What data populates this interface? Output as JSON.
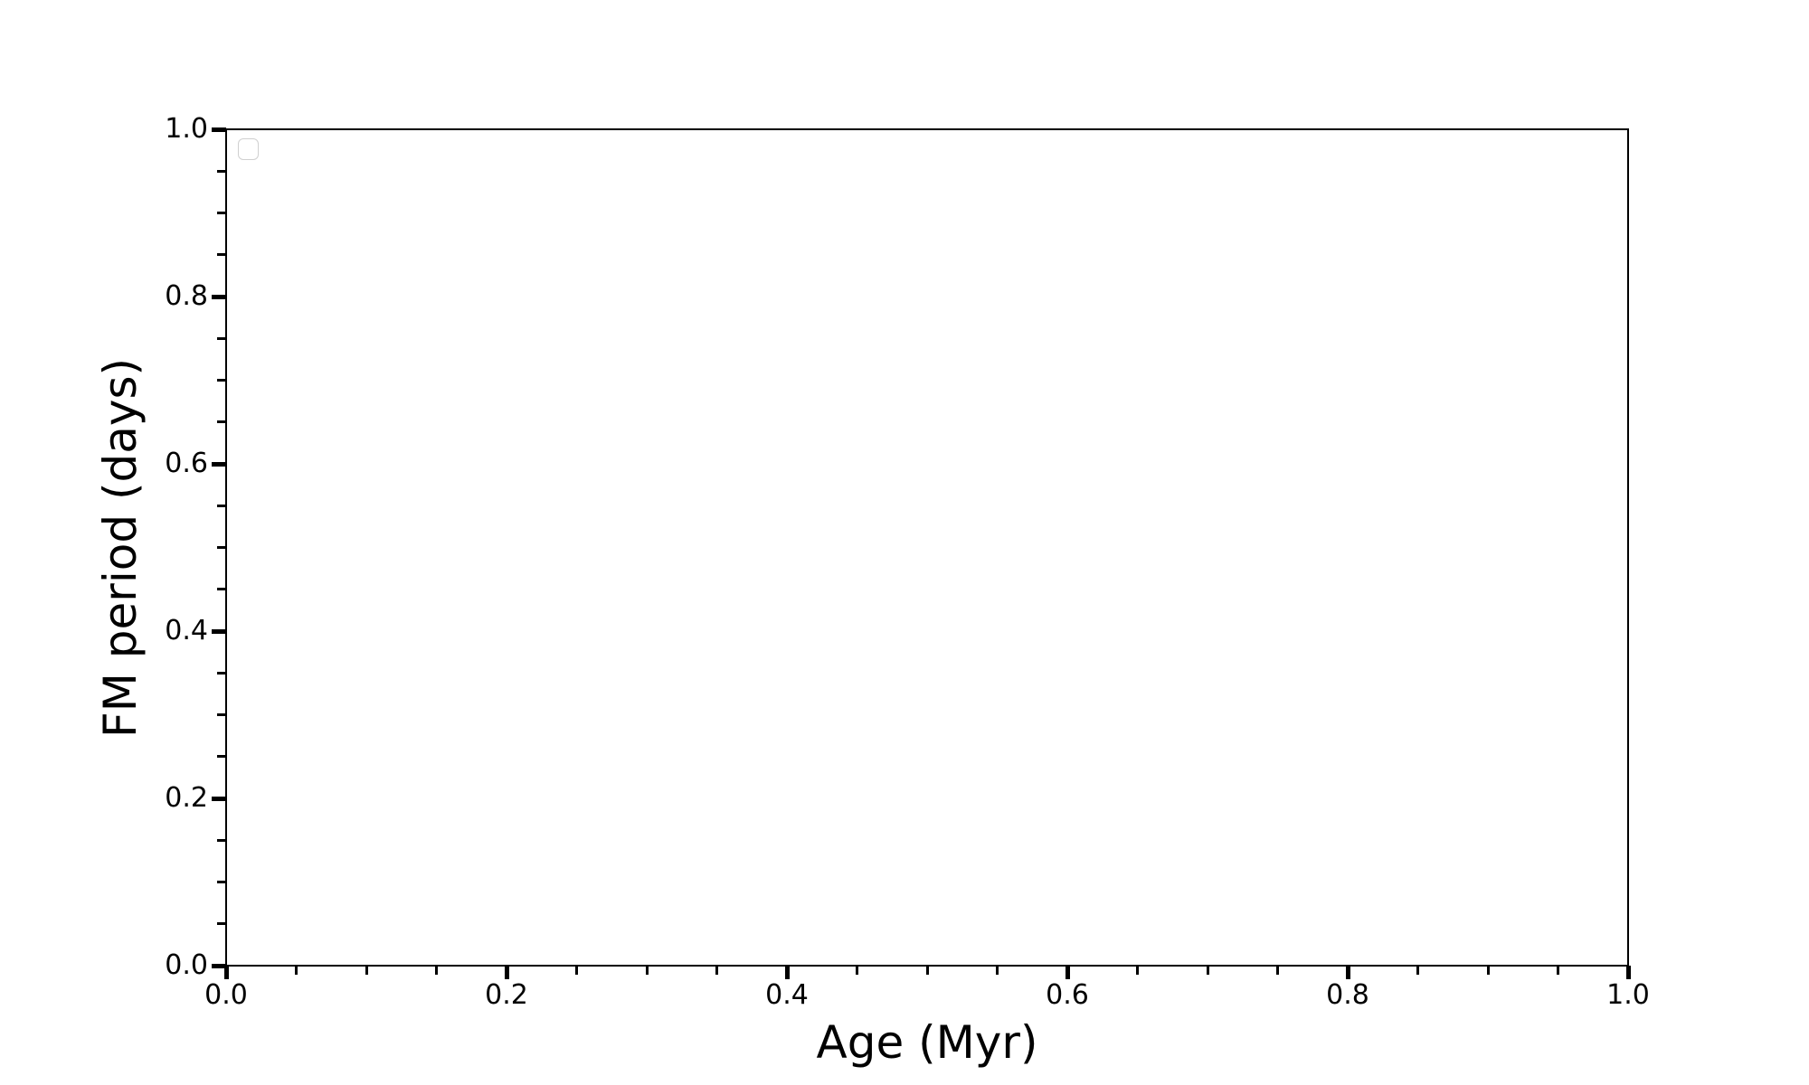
{
  "chart_data": {
    "type": "scatter",
    "title": "",
    "xlabel": "Age (Myr)",
    "ylabel": "FM period (days)",
    "xlim": [
      0.0,
      1.0
    ],
    "ylim": [
      0.0,
      1.0
    ],
    "x_ticks": {
      "values": [
        0.0,
        0.2,
        0.4,
        0.6,
        0.8,
        1.0
      ],
      "labels": [
        "0.0",
        "0.2",
        "0.4",
        "0.6",
        "0.8",
        "1.0"
      ]
    },
    "y_ticks": {
      "values": [
        0.0,
        0.2,
        0.4,
        0.6,
        0.8,
        1.0
      ],
      "labels": [
        "0.0",
        "0.2",
        "0.4",
        "0.6",
        "0.8",
        "1.0"
      ]
    },
    "minor_tick_step": 0.05,
    "grid": false,
    "series": [],
    "legend": {
      "visible": true,
      "entries": [],
      "position": "upper-left"
    },
    "colors": {
      "background": "#ffffff",
      "foreground": "#000000",
      "legend_border": "#d0d0d0"
    }
  }
}
